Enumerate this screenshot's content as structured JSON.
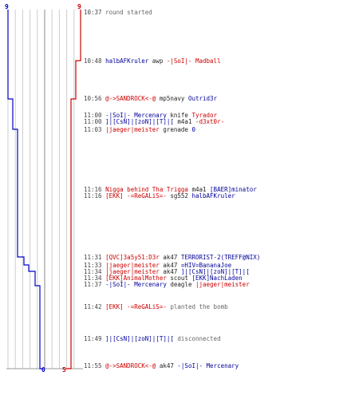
{
  "colors": {
    "t1": "#0000cc",
    "t2": "#cc0000",
    "grid": "#cccccc",
    "axis": "#888888"
  },
  "counters": {
    "top_left": "9",
    "top_right": "9",
    "bottom_left": "0",
    "bottom_right": "5"
  },
  "events": [
    {
      "time": "10:37",
      "parts": [
        {
          "text": "round started",
          "cls": "gray"
        }
      ]
    },
    {
      "time": "10:48",
      "parts": [
        {
          "text": "halbAFKruler",
          "cls": "blue"
        },
        {
          "text": " awp ",
          "cls": "dark"
        },
        {
          "text": "-|SoI|- Madball",
          "cls": "red"
        }
      ]
    },
    {
      "time": "10:56",
      "parts": [
        {
          "text": "@->SANDROCK<-@",
          "cls": "red"
        },
        {
          "text": " mp5navy ",
          "cls": "dark"
        },
        {
          "text": "Outrid3r",
          "cls": "blue"
        }
      ]
    },
    {
      "time": "11:00",
      "parts": [
        {
          "text": "-|SoI|- Mercenary",
          "cls": "blue"
        },
        {
          "text": " knife ",
          "cls": "dark"
        },
        {
          "text": "Tyrador",
          "cls": "red"
        }
      ]
    },
    {
      "time": "11:00",
      "parts": [
        {
          "text": "]|[CsN]|[zoN]|[T]|[",
          "cls": "blue"
        },
        {
          "text": " m4a1 ",
          "cls": "dark"
        },
        {
          "text": "-d3xt0r-",
          "cls": "red"
        }
      ]
    },
    {
      "time": "11:03",
      "parts": [
        {
          "text": "|jaeger|meister",
          "cls": "red"
        },
        {
          "text": " grenade ",
          "cls": "dark"
        },
        {
          "text": "0",
          "cls": "blue"
        }
      ]
    },
    {
      "time": "11:16",
      "parts": [
        {
          "text": "Nigga behind Tha Trigga",
          "cls": "red"
        },
        {
          "text": " m4a1 ",
          "cls": "dark"
        },
        {
          "text": "[BAER]minator",
          "cls": "blue"
        }
      ]
    },
    {
      "time": "11:16",
      "parts": [
        {
          "text": "[EKK] -=ReGALiS=-",
          "cls": "red"
        },
        {
          "text": " sg552 ",
          "cls": "dark"
        },
        {
          "text": "halbAFKruler",
          "cls": "blue"
        }
      ]
    },
    {
      "time": "11:31",
      "parts": [
        {
          "text": "[QVC]3a5y51:D3r",
          "cls": "red"
        },
        {
          "text": " ak47 ",
          "cls": "dark"
        },
        {
          "text": "TERRORIST-2(TREFF@NIX)",
          "cls": "blue"
        }
      ]
    },
    {
      "time": "11:33",
      "parts": [
        {
          "text": "|jaeger|meister",
          "cls": "red"
        },
        {
          "text": " ak47 ",
          "cls": "dark"
        },
        {
          "text": "=HIV=BananaJoe",
          "cls": "blue"
        }
      ]
    },
    {
      "time": "11:34",
      "parts": [
        {
          "text": "|jaeger|meister",
          "cls": "red"
        },
        {
          "text": " ak47 ",
          "cls": "dark"
        },
        {
          "text": "]|[CsN]|[zoN]|[T]|[",
          "cls": "blue"
        }
      ]
    },
    {
      "time": "11:34",
      "parts": [
        {
          "text": "[EKK]AnimalMother",
          "cls": "red"
        },
        {
          "text": " scout ",
          "cls": "dark"
        },
        {
          "text": "[EKK]NachLaden",
          "cls": "blue"
        }
      ]
    },
    {
      "time": "11:37",
      "parts": [
        {
          "text": "-|SoI|- Mercenary",
          "cls": "blue"
        },
        {
          "text": " deagle ",
          "cls": "dark"
        },
        {
          "text": "|jaeger|meister",
          "cls": "red"
        }
      ]
    },
    {
      "time": "11:42",
      "parts": [
        {
          "text": "[EKK] -=ReGALiS=-",
          "cls": "red"
        },
        {
          "text": " planted the bomb",
          "cls": "gray"
        }
      ]
    },
    {
      "time": "11:49",
      "parts": [
        {
          "text": "]|[CsN]|[zoN]|[T]|[",
          "cls": "blue"
        },
        {
          "text": " disconnected",
          "cls": "gray"
        }
      ]
    },
    {
      "time": "11:55",
      "parts": [
        {
          "text": "@->SANDROCK<-@",
          "cls": "red"
        },
        {
          "text": " ak47 ",
          "cls": "dark"
        },
        {
          "text": "-|SoI|- Mercenary",
          "cls": "blue"
        }
      ]
    }
  ]
}
